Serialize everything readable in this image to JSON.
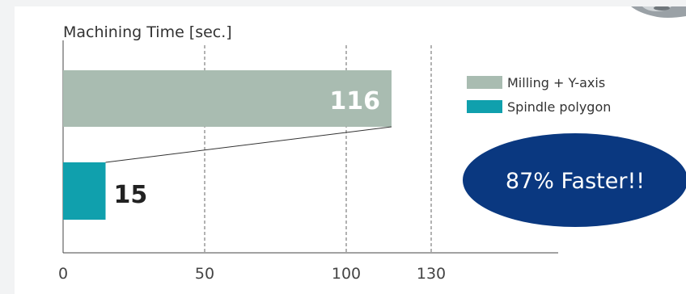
{
  "chart_data": {
    "type": "bar",
    "orientation": "horizontal",
    "title": "Machining Time [sec.]",
    "xlabel": "",
    "ylabel": "",
    "xlim": [
      0,
      148
    ],
    "gridlines": [
      50,
      100,
      130
    ],
    "ticks": [
      0,
      50,
      100,
      130
    ],
    "grid": true,
    "legend_position": "right",
    "series": [
      {
        "name": "Milling + Y-axis",
        "value": 116,
        "color": "#a9bcb1",
        "label_color": "#ffffff"
      },
      {
        "name": "Spindle polygon",
        "value": 15,
        "color": "#10a0ad",
        "label_color": "#222222"
      }
    ]
  },
  "callout": {
    "text": "87% Faster!!",
    "color": "#0a3880"
  },
  "photo": {
    "icon": "machined-part-photo"
  }
}
